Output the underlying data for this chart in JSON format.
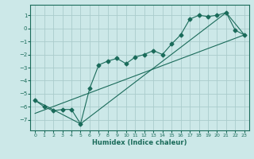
{
  "xlabel": "Humidex (Indice chaleur)",
  "xlim": [
    -0.5,
    23.5
  ],
  "ylim": [
    -7.8,
    1.8
  ],
  "yticks": [
    1,
    0,
    -1,
    -2,
    -3,
    -4,
    -5,
    -6,
    -7
  ],
  "xticks": [
    0,
    1,
    2,
    3,
    4,
    5,
    6,
    7,
    8,
    9,
    10,
    11,
    12,
    13,
    14,
    15,
    16,
    17,
    18,
    19,
    20,
    21,
    22,
    23
  ],
  "bg_color": "#cce8e8",
  "line_color": "#1a6b5a",
  "grid_color": "#aacccc",
  "line1_x": [
    0,
    1,
    2,
    3,
    4,
    5,
    6,
    7,
    8,
    9,
    10,
    11,
    12,
    13,
    14,
    15,
    16,
    17,
    18,
    19,
    20,
    21,
    22,
    23
  ],
  "line1_y": [
    -5.5,
    -6.0,
    -6.3,
    -6.2,
    -6.2,
    -7.3,
    -4.6,
    -2.8,
    -2.5,
    -2.3,
    -2.7,
    -2.2,
    -2.0,
    -1.7,
    -2.0,
    -1.2,
    -0.5,
    0.7,
    1.0,
    0.9,
    1.0,
    1.2,
    -0.15,
    -0.5
  ],
  "line2_x": [
    0,
    5,
    21,
    23
  ],
  "line2_y": [
    -5.5,
    -7.3,
    1.2,
    -0.5
  ],
  "line3_x": [
    0,
    23
  ],
  "line3_y": [
    -6.5,
    -0.5
  ],
  "marker_x": [
    6,
    7,
    8,
    9,
    10,
    11,
    12,
    13,
    14,
    15,
    16,
    17,
    18,
    19,
    20,
    21,
    22,
    23
  ],
  "marker_y": [
    -4.6,
    -2.8,
    -2.5,
    -2.3,
    -2.7,
    -2.2,
    -2.0,
    -1.7,
    -2.0,
    -1.2,
    -0.5,
    0.7,
    1.0,
    0.9,
    1.0,
    1.2,
    -0.15,
    -0.5
  ]
}
